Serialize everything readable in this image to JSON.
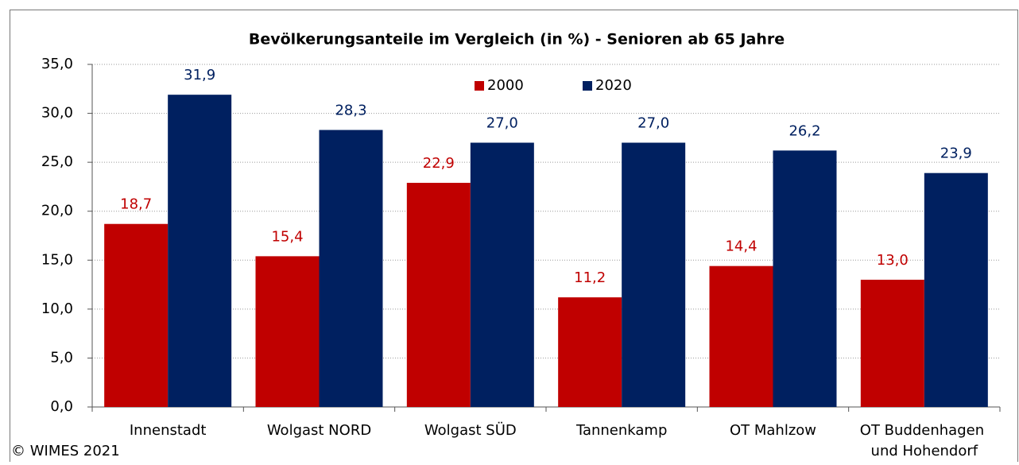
{
  "chart_data": {
    "type": "bar",
    "title": "Bevölkerungsanteile im Vergleich (in %) - Senioren ab 65 Jahre",
    "categories": [
      "Innenstadt",
      "Wolgast NORD",
      "Wolgast SÜD",
      "Tannenkamp",
      "OT Mahlzow",
      "OT Buddenhagen\nund Hohendorf"
    ],
    "series": [
      {
        "name": "2000",
        "color": "#c00000",
        "values": [
          18.7,
          15.4,
          22.9,
          11.2,
          14.4,
          13.0
        ],
        "value_labels": [
          "18,7",
          "15,4",
          "22,9",
          "11,2",
          "14,4",
          "13,0"
        ]
      },
      {
        "name": "2020",
        "color": "#002060",
        "values": [
          31.9,
          28.3,
          27.0,
          27.0,
          26.2,
          23.9
        ],
        "value_labels": [
          "31,9",
          "28,3",
          "27,0",
          "27,0",
          "26,2",
          "23,9"
        ]
      }
    ],
    "ylim": [
      0,
      35
    ],
    "yticks": [
      {
        "value": 0,
        "label": "0,0"
      },
      {
        "value": 5,
        "label": "5,0"
      },
      {
        "value": 10,
        "label": "10,0"
      },
      {
        "value": 15,
        "label": "15,0"
      },
      {
        "value": 20,
        "label": "20,0"
      },
      {
        "value": 25,
        "label": "25,0"
      },
      {
        "value": 30,
        "label": "30,0"
      },
      {
        "value": 35,
        "label": "35,0"
      }
    ],
    "grid": true,
    "legend": "top",
    "footer": "© WIMES 2021"
  }
}
